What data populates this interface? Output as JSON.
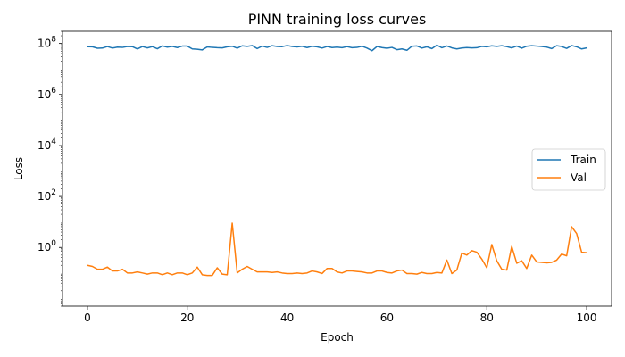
{
  "chart_data": {
    "type": "line",
    "title": "PINN training loss curves",
    "xlabel": "Epoch",
    "ylabel": "Loss",
    "xlim": [
      -5,
      105
    ],
    "ylim": [
      0.005,
      300000000
    ],
    "yscale": "log",
    "grid": false,
    "legend_position": "center-right",
    "xticks": [
      0,
      20,
      40,
      60,
      80,
      100
    ],
    "xtick_labels": [
      "0",
      "20",
      "40",
      "60",
      "80",
      "100"
    ],
    "yticks": [
      1,
      100,
      10000,
      1000000,
      100000000
    ],
    "ytick_labels": [
      {
        "base": "10",
        "exp": "0"
      },
      {
        "base": "10",
        "exp": "2"
      },
      {
        "base": "10",
        "exp": "4"
      },
      {
        "base": "10",
        "exp": "6"
      },
      {
        "base": "10",
        "exp": "8"
      }
    ],
    "series": [
      {
        "name": "Train",
        "color": "#1f77b4",
        "x": [
          0,
          1,
          2,
          3,
          4,
          5,
          6,
          7,
          8,
          9,
          10,
          11,
          12,
          13,
          14,
          15,
          16,
          17,
          18,
          19,
          20,
          21,
          22,
          23,
          24,
          25,
          26,
          27,
          28,
          29,
          30,
          31,
          32,
          33,
          34,
          35,
          36,
          37,
          38,
          39,
          40,
          41,
          42,
          43,
          44,
          45,
          46,
          47,
          48,
          49,
          50,
          51,
          52,
          53,
          54,
          55,
          56,
          57,
          58,
          59,
          60,
          61,
          62,
          63,
          64,
          65,
          66,
          67,
          68,
          69,
          70,
          71,
          72,
          73,
          74,
          75,
          76,
          77,
          78,
          79,
          80,
          81,
          82,
          83,
          84,
          85,
          86,
          87,
          88,
          89,
          90,
          91,
          92,
          93,
          94,
          95,
          96,
          97,
          98,
          99,
          100
        ],
        "y": [
          75000000.0,
          74000000.0,
          65000000.0,
          66000000.0,
          76000000.0,
          66000000.0,
          72000000.0,
          70000000.0,
          76000000.0,
          75000000.0,
          61000000.0,
          76000000.0,
          67000000.0,
          75000000.0,
          62000000.0,
          80000000.0,
          72000000.0,
          77000000.0,
          69000000.0,
          79000000.0,
          79000000.0,
          61000000.0,
          59000000.0,
          56000000.0,
          73000000.0,
          70000000.0,
          68000000.0,
          67000000.0,
          74000000.0,
          78000000.0,
          65000000.0,
          81000000.0,
          77000000.0,
          83000000.0,
          63000000.0,
          79000000.0,
          70000000.0,
          82000000.0,
          76000000.0,
          75000000.0,
          83000000.0,
          76000000.0,
          73000000.0,
          78000000.0,
          69000000.0,
          78000000.0,
          74000000.0,
          66000000.0,
          76000000.0,
          69000000.0,
          72000000.0,
          68000000.0,
          75000000.0,
          68000000.0,
          70000000.0,
          78000000.0,
          66000000.0,
          52000000.0,
          76000000.0,
          69000000.0,
          65000000.0,
          70000000.0,
          57000000.0,
          61000000.0,
          54000000.0,
          78000000.0,
          80000000.0,
          66000000.0,
          74000000.0,
          63000000.0,
          86000000.0,
          68000000.0,
          80000000.0,
          67000000.0,
          61000000.0,
          66000000.0,
          69000000.0,
          67000000.0,
          68000000.0,
          77000000.0,
          74000000.0,
          81000000.0,
          77000000.0,
          82000000.0,
          75000000.0,
          67000000.0,
          79000000.0,
          65000000.0,
          78000000.0,
          82000000.0,
          79000000.0,
          76000000.0,
          72000000.0,
          63000000.0,
          82000000.0,
          76000000.0,
          64000000.0,
          83000000.0,
          74000000.0,
          61000000.0,
          67000000.0
        ]
      },
      {
        "name": "Val",
        "color": "#ff7f0e",
        "x": [
          0,
          1,
          2,
          3,
          4,
          5,
          6,
          7,
          8,
          9,
          10,
          11,
          12,
          13,
          14,
          15,
          16,
          17,
          18,
          19,
          20,
          21,
          22,
          23,
          24,
          25,
          26,
          27,
          28,
          29,
          30,
          31,
          32,
          33,
          34,
          35,
          36,
          37,
          38,
          39,
          40,
          41,
          42,
          43,
          44,
          45,
          46,
          47,
          48,
          49,
          50,
          51,
          52,
          53,
          54,
          55,
          56,
          57,
          58,
          59,
          60,
          61,
          62,
          63,
          64,
          65,
          66,
          67,
          68,
          69,
          70,
          71,
          72,
          73,
          74,
          75,
          76,
          77,
          78,
          79,
          80,
          81,
          82,
          83,
          84,
          85,
          86,
          87,
          88,
          89,
          90,
          91,
          92,
          93,
          94,
          95,
          96,
          97,
          98,
          99,
          100
        ],
        "y": [
          0.2,
          0.18,
          0.14,
          0.14,
          0.17,
          0.12,
          0.12,
          0.14,
          0.1,
          0.1,
          0.11,
          0.1,
          0.09,
          0.1,
          0.1,
          0.085,
          0.1,
          0.085,
          0.1,
          0.1,
          0.085,
          0.1,
          0.17,
          0.085,
          0.08,
          0.08,
          0.16,
          0.09,
          0.085,
          9.0,
          0.1,
          0.14,
          0.18,
          0.14,
          0.11,
          0.11,
          0.11,
          0.105,
          0.11,
          0.1,
          0.095,
          0.095,
          0.1,
          0.095,
          0.1,
          0.12,
          0.11,
          0.095,
          0.15,
          0.15,
          0.11,
          0.1,
          0.12,
          0.12,
          0.115,
          0.11,
          0.1,
          0.1,
          0.12,
          0.12,
          0.105,
          0.1,
          0.12,
          0.13,
          0.095,
          0.095,
          0.09,
          0.105,
          0.095,
          0.095,
          0.105,
          0.1,
          0.32,
          0.095,
          0.13,
          0.6,
          0.5,
          0.75,
          0.65,
          0.35,
          0.16,
          1.3,
          0.3,
          0.14,
          0.13,
          1.1,
          0.24,
          0.3,
          0.15,
          0.5,
          0.27,
          0.26,
          0.25,
          0.26,
          0.32,
          0.55,
          0.47,
          6.5,
          3.5,
          0.65,
          0.62
        ]
      }
    ]
  }
}
